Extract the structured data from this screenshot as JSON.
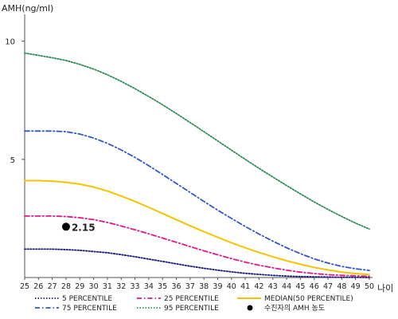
{
  "chart_data": {
    "type": "line",
    "ylabel": "AMH(ng/ml)",
    "xlabel": "나이",
    "x": [
      25,
      26,
      27,
      28,
      29,
      30,
      31,
      32,
      33,
      34,
      35,
      36,
      37,
      38,
      39,
      40,
      41,
      42,
      43,
      44,
      45,
      46,
      47,
      48,
      49,
      50
    ],
    "x_tick_labels": [
      "25",
      "26",
      "27",
      "28",
      "29",
      "30",
      "31",
      "32",
      "33",
      "34",
      "35",
      "36",
      "37",
      "38",
      "39",
      "40",
      "41",
      "42",
      "43",
      "44",
      "45",
      "46",
      "47",
      "48",
      "49",
      "50"
    ],
    "ylim": [
      0,
      11
    ],
    "y_ticks": [
      5,
      10
    ],
    "grid": false,
    "legend_position": "bottom",
    "series": [
      {
        "name": "5 PERCENTILE",
        "key": "p5",
        "color": "#1a1a7a",
        "style": "dotted",
        "values": [
          1.2,
          1.2,
          1.2,
          1.18,
          1.15,
          1.1,
          1.05,
          0.97,
          0.88,
          0.78,
          0.68,
          0.58,
          0.48,
          0.39,
          0.31,
          0.24,
          0.18,
          0.13,
          0.09,
          0.06,
          0.04,
          0.03,
          0.02,
          0.01,
          0.01,
          0.0
        ]
      },
      {
        "name": "25 PERCENTILE",
        "key": "p25",
        "color": "#e0188c",
        "style": "dashdot",
        "values": [
          2.6,
          2.6,
          2.6,
          2.58,
          2.53,
          2.45,
          2.33,
          2.18,
          2.02,
          1.85,
          1.67,
          1.49,
          1.31,
          1.13,
          0.96,
          0.8,
          0.65,
          0.52,
          0.41,
          0.31,
          0.23,
          0.17,
          0.12,
          0.09,
          0.07,
          0.05
        ]
      },
      {
        "name": "MEDIAN(50 PERCENTILE)",
        "key": "p50",
        "color": "#f5c400",
        "style": "solid",
        "values": [
          4.1,
          4.1,
          4.08,
          4.03,
          3.95,
          3.83,
          3.66,
          3.45,
          3.22,
          2.97,
          2.71,
          2.45,
          2.19,
          1.94,
          1.7,
          1.47,
          1.26,
          1.06,
          0.88,
          0.71,
          0.56,
          0.43,
          0.32,
          0.23,
          0.17,
          0.12
        ]
      },
      {
        "name": "75 PERCENTILE",
        "key": "p75",
        "color": "#3355cc",
        "style": "dashdot",
        "values": [
          6.2,
          6.2,
          6.2,
          6.17,
          6.07,
          5.9,
          5.68,
          5.4,
          5.08,
          4.73,
          4.36,
          3.98,
          3.6,
          3.22,
          2.85,
          2.5,
          2.16,
          1.84,
          1.54,
          1.26,
          1.01,
          0.79,
          0.61,
          0.47,
          0.37,
          0.3
        ]
      },
      {
        "name": "95 PERCENTILE",
        "key": "p95",
        "color": "#2e8b57",
        "style": "dotted",
        "values": [
          9.5,
          9.4,
          9.3,
          9.18,
          9.02,
          8.82,
          8.58,
          8.3,
          7.99,
          7.66,
          7.31,
          6.94,
          6.56,
          6.17,
          5.78,
          5.39,
          5.0,
          4.62,
          4.25,
          3.89,
          3.54,
          3.2,
          2.88,
          2.58,
          2.3,
          2.05
        ]
      }
    ],
    "patient_point": {
      "x": 28,
      "y": 2.15,
      "label": "2.15",
      "color": "#000000"
    },
    "legend": [
      {
        "key": "p5",
        "label": "5 PERCENTILE"
      },
      {
        "key": "p25",
        "label": "25 PERCENTILE"
      },
      {
        "key": "p50",
        "label": "MEDIAN(50 PERCENTILE)"
      },
      {
        "key": "p75",
        "label": "75 PERCENTILE"
      },
      {
        "key": "p95",
        "label": "95 PERCENTILE"
      },
      {
        "key": "patient",
        "label": "수진자의 AMH 농도"
      }
    ]
  }
}
